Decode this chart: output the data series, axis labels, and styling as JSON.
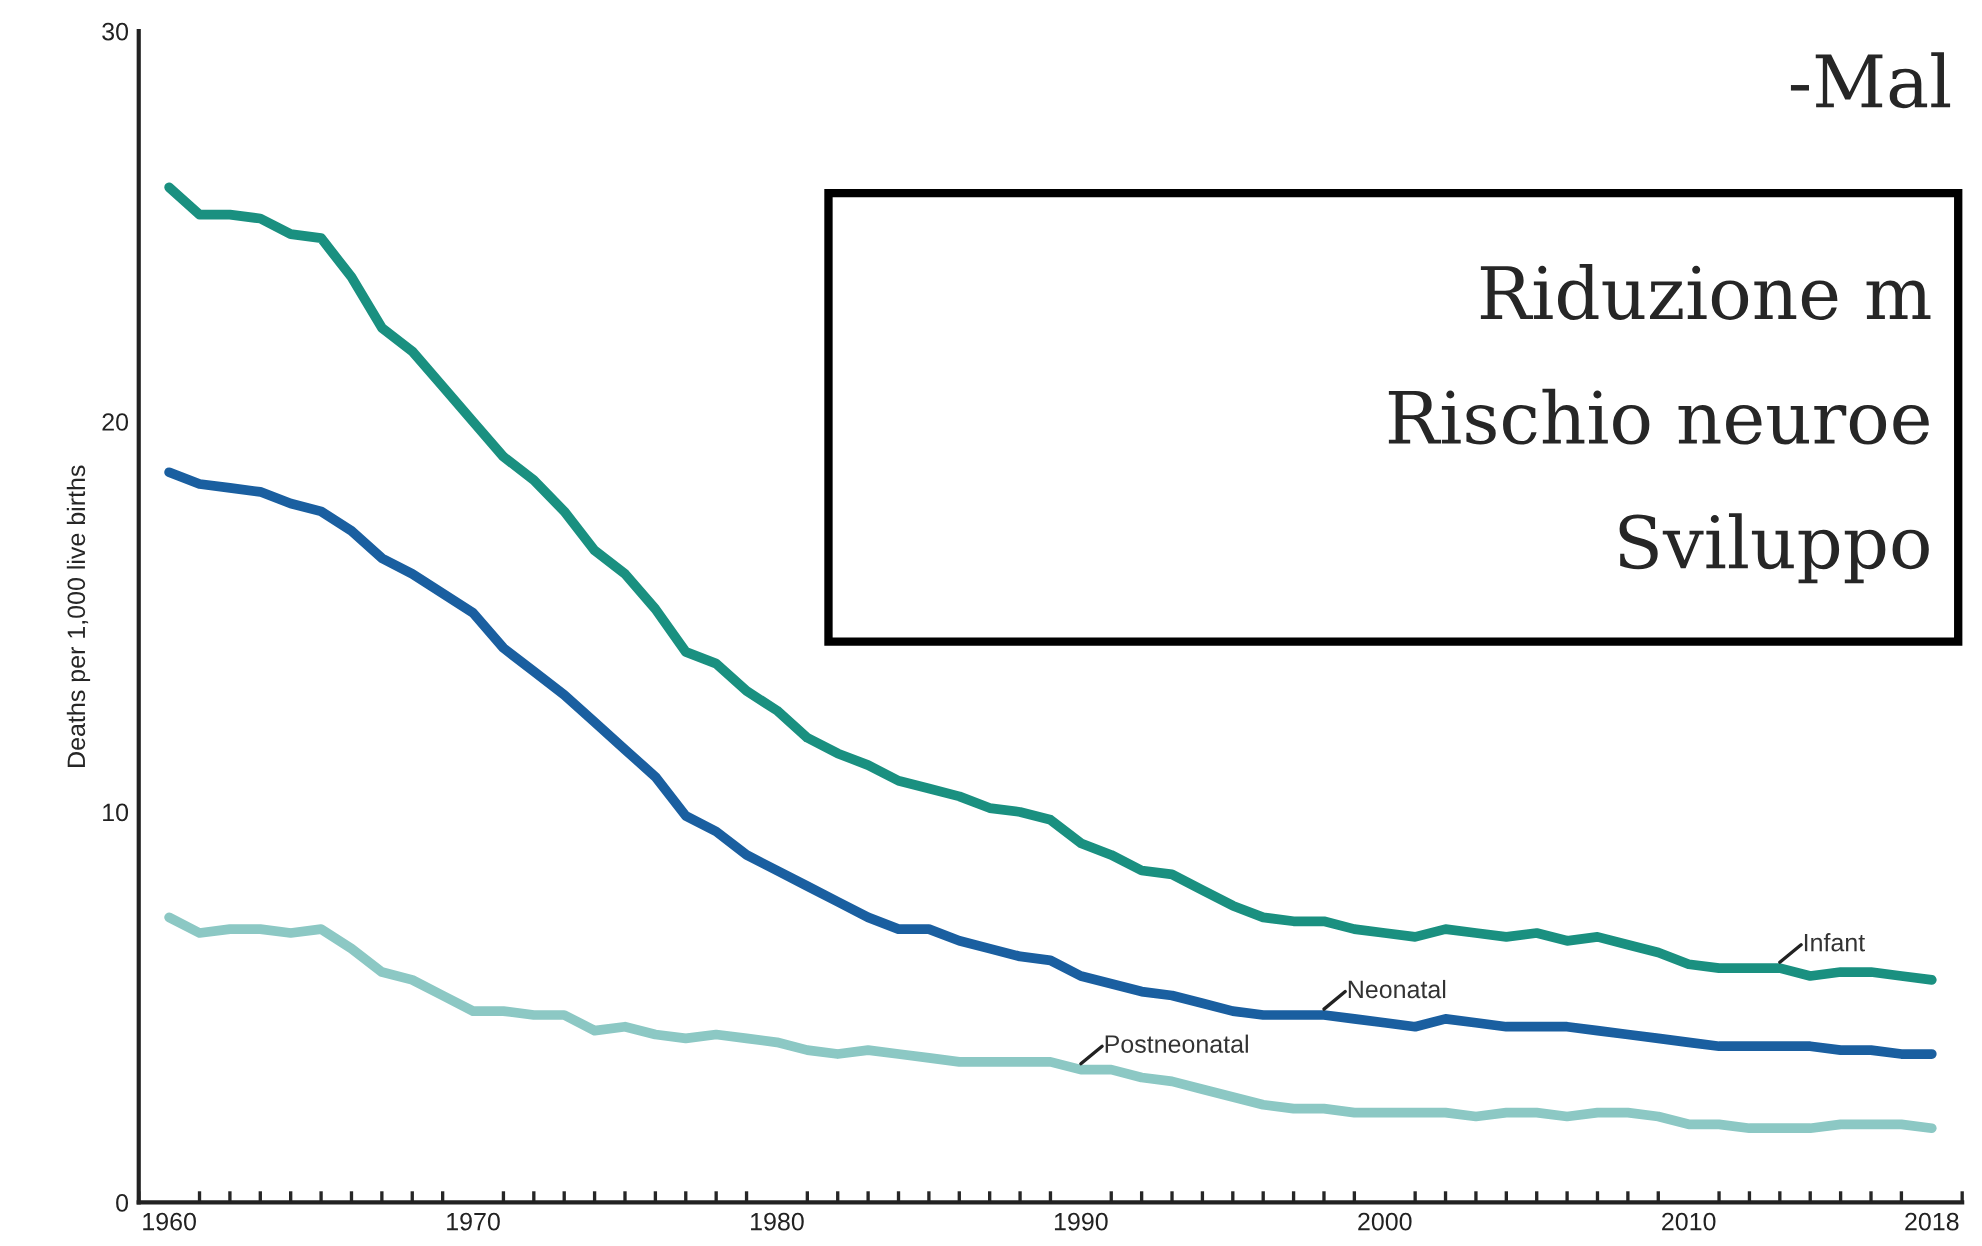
{
  "chart_data": {
    "type": "line",
    "ylabel": "Deaths per 1,000 live births",
    "x": [
      1960,
      1961,
      1962,
      1963,
      1964,
      1965,
      1966,
      1967,
      1968,
      1969,
      1970,
      1971,
      1972,
      1973,
      1974,
      1975,
      1976,
      1977,
      1978,
      1979,
      1980,
      1981,
      1982,
      1983,
      1984,
      1985,
      1986,
      1987,
      1988,
      1989,
      1990,
      1991,
      1992,
      1993,
      1994,
      1995,
      1996,
      1997,
      1998,
      1999,
      2000,
      2001,
      2002,
      2003,
      2004,
      2005,
      2006,
      2007,
      2008,
      2009,
      2010,
      2011,
      2012,
      2013,
      2014,
      2015,
      2016,
      2017,
      2018
    ],
    "series": [
      {
        "name": "Infant",
        "color": "#1a9080",
        "values": [
          26.0,
          25.3,
          25.3,
          25.2,
          24.8,
          24.7,
          23.7,
          22.4,
          21.8,
          20.9,
          20.0,
          19.1,
          18.5,
          17.7,
          16.7,
          16.1,
          15.2,
          14.1,
          13.8,
          13.1,
          12.6,
          11.9,
          11.5,
          11.2,
          10.8,
          10.6,
          10.4,
          10.1,
          10.0,
          9.8,
          9.2,
          8.9,
          8.5,
          8.4,
          8.0,
          7.6,
          7.3,
          7.2,
          7.2,
          7.0,
          6.9,
          6.8,
          7.0,
          6.9,
          6.8,
          6.9,
          6.7,
          6.8,
          6.6,
          6.4,
          6.1,
          6.0,
          6.0,
          6.0,
          5.8,
          5.9,
          5.9,
          5.8,
          5.7
        ]
      },
      {
        "name": "Neonatal",
        "color": "#1a5fa0",
        "values": [
          18.7,
          18.4,
          18.3,
          18.2,
          17.9,
          17.7,
          17.2,
          16.5,
          16.1,
          15.6,
          15.1,
          14.2,
          13.6,
          13.0,
          12.3,
          11.6,
          10.9,
          9.9,
          9.5,
          8.9,
          8.5,
          8.1,
          7.7,
          7.3,
          7.0,
          7.0,
          6.7,
          6.5,
          6.3,
          6.2,
          5.8,
          5.6,
          5.4,
          5.3,
          5.1,
          4.9,
          4.8,
          4.8,
          4.8,
          4.7,
          4.6,
          4.5,
          4.7,
          4.6,
          4.5,
          4.5,
          4.5,
          4.4,
          4.3,
          4.2,
          4.1,
          4.0,
          4.0,
          4.0,
          4.0,
          3.9,
          3.9,
          3.8,
          3.8
        ]
      },
      {
        "name": "Postneonatal",
        "color": "#8cc8c4",
        "values": [
          7.3,
          6.9,
          7.0,
          7.0,
          6.9,
          7.0,
          6.5,
          5.9,
          5.7,
          5.3,
          4.9,
          4.9,
          4.8,
          4.8,
          4.4,
          4.5,
          4.3,
          4.2,
          4.3,
          4.2,
          4.1,
          3.9,
          3.8,
          3.9,
          3.8,
          3.7,
          3.6,
          3.6,
          3.6,
          3.6,
          3.4,
          3.4,
          3.2,
          3.1,
          2.9,
          2.7,
          2.5,
          2.4,
          2.4,
          2.3,
          2.3,
          2.3,
          2.3,
          2.2,
          2.3,
          2.3,
          2.2,
          2.3,
          2.3,
          2.2,
          2.0,
          2.0,
          1.9,
          1.9,
          1.9,
          2.0,
          2.0,
          2.0,
          1.9
        ]
      }
    ],
    "xlim": [
      1959,
      2019
    ],
    "xticks": [
      1960,
      1970,
      1980,
      1990,
      2000,
      2010,
      2018
    ],
    "ylim": [
      0,
      30
    ],
    "yticks": [
      0,
      10,
      20,
      30
    ],
    "grid": false,
    "legend": false,
    "marker": "none",
    "line_style": "solid",
    "annotations": [
      "-Mal",
      "Riduzione m",
      "Rischio neuroe",
      "Sviluppo"
    ]
  }
}
